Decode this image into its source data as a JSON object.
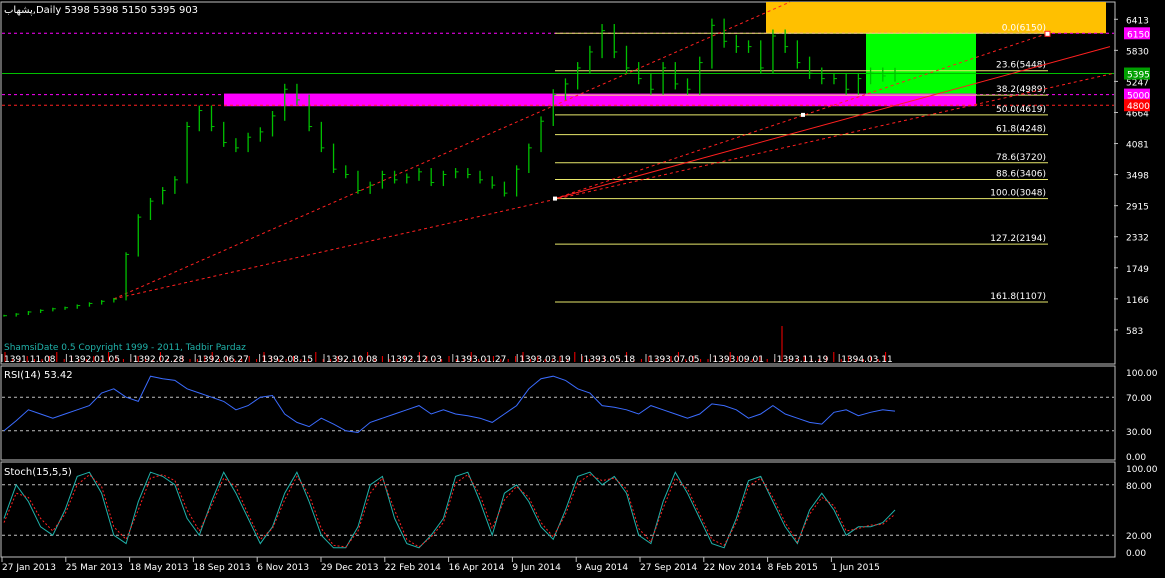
{
  "window": {
    "title": "پشهاب,Daily  5398 5398 5150 5395  903"
  },
  "colors": {
    "background": "#000000",
    "price": "#00c000",
    "fib_line": "#e8e86c",
    "trend": "#ff2020",
    "magenta": "#ff00ff",
    "zone_yellow": "#ffc000",
    "zone_green": "#00ff00",
    "rsi_line": "#3b6cff",
    "stoch_main": "#20b2aa",
    "stoch_signal": "#ff2020",
    "axis_text": "#ffffff",
    "frame": "#c0c0c0"
  },
  "chart_data": [
    {
      "type": "line",
      "panel": "price",
      "title": "پشهاب,Daily  5398 5398 5150 5395  903",
      "ylim": [
        300,
        6700
      ],
      "y_ticks": [
        6413,
        5830,
        5247,
        4664,
        4081,
        3498,
        2915,
        2332,
        1749,
        1166,
        583
      ],
      "price_tags": [
        {
          "label": "6150",
          "value": 6150,
          "color": "#ff00ff"
        },
        {
          "label": "5395",
          "value": 5395,
          "color": "#00a000"
        },
        {
          "label": "5000",
          "value": 5000,
          "color": "#ff00ff"
        },
        {
          "label": "4800",
          "value": 4800,
          "color": "#ff0000"
        }
      ],
      "fib_levels": [
        {
          "label": "0.0(6150)",
          "value": 6150
        },
        {
          "label": "23.6(5448)",
          "value": 5448
        },
        {
          "label": "38.2(4989)",
          "value": 4989
        },
        {
          "label": "50.0(4619)",
          "value": 4619
        },
        {
          "label": "61.8(4248)",
          "value": 4248
        },
        {
          "label": "78.6(3720)",
          "value": 3720
        },
        {
          "label": "88.6(3406)",
          "value": 3406
        },
        {
          "label": "100.0(3048)",
          "value": 3048
        },
        {
          "label": "127.2(2194)",
          "value": 2194
        },
        {
          "label": "161.8(1107)",
          "value": 1107
        }
      ],
      "watermark": "ShamsiDate 0.5 Copyright 1999 - 2011, Tadbir Pardaz",
      "shamsi_dates": [
        "1391.11.08",
        "1392.01.05",
        "1392.02.28",
        "1392.06.27",
        "1392.08.15",
        "1392.10.08",
        "1392.12.03",
        "1393.01.27",
        "1393.03.19",
        "1393.05.18",
        "1393.07.05",
        "1393.09.01",
        "1393.11.19",
        "1394.03.11"
      ],
      "series": [
        {
          "values": [
            850,
            880,
            920,
            950,
            980,
            1000,
            1040,
            1080,
            1120,
            1160,
            2000,
            2700,
            3000,
            3200,
            3400,
            4400,
            4700,
            4400,
            4100,
            4000,
            4200,
            4300,
            4600,
            5100,
            4900,
            4400,
            4000,
            3600,
            3500,
            3200,
            3300,
            3500,
            3400,
            3450,
            3550,
            3350,
            3500,
            3550,
            3500,
            3400,
            3300,
            3150,
            3600,
            4000,
            4500,
            5000,
            5200,
            5500,
            5800,
            6200,
            5800,
            5500,
            5300,
            5100,
            5500,
            5200,
            5100,
            5600,
            6300,
            6000,
            5900,
            5900,
            5500,
            6100,
            5900,
            5600,
            5400,
            5300,
            5300,
            5100,
            5300,
            5400,
            5350,
            5395
          ]
        }
      ]
    },
    {
      "type": "line",
      "panel": "rsi",
      "title": "RSI(14) 53.42",
      "ylim": [
        0,
        100
      ],
      "y_ticks": [
        100,
        70,
        30,
        0
      ],
      "levels": [
        70,
        30
      ],
      "series": [
        {
          "name": "RSI(14)",
          "values": [
            30,
            42,
            55,
            50,
            45,
            50,
            55,
            60,
            75,
            80,
            70,
            65,
            95,
            92,
            90,
            80,
            75,
            70,
            65,
            55,
            60,
            70,
            72,
            50,
            40,
            35,
            45,
            38,
            30,
            28,
            40,
            45,
            50,
            55,
            60,
            50,
            55,
            50,
            48,
            45,
            40,
            50,
            60,
            80,
            92,
            95,
            90,
            80,
            75,
            60,
            58,
            55,
            50,
            60,
            55,
            50,
            45,
            50,
            62,
            60,
            55,
            45,
            50,
            60,
            50,
            45,
            40,
            38,
            52,
            55,
            48,
            52,
            55,
            53.42
          ]
        }
      ]
    },
    {
      "type": "line",
      "panel": "stochastic",
      "title": "Stoch(15,5,5)",
      "ylim": [
        0,
        100
      ],
      "y_ticks": [
        100,
        80,
        20,
        0
      ],
      "levels": [
        80,
        20
      ],
      "x_labels": [
        "27 Jan 2013",
        "25 Mar 2013",
        "18 May 2013",
        "18 Sep 2013",
        "6 Nov 2013",
        "29 Dec 2013",
        "22 Feb 2014",
        "16 Apr 2014",
        "9 Jun 2014",
        "9 Aug 2014",
        "27 Sep 2014",
        "22 Nov 2014",
        "8 Feb 2015",
        "1 Jun 2015"
      ],
      "series": [
        {
          "name": "Main",
          "values": [
            40,
            80,
            60,
            30,
            20,
            50,
            90,
            95,
            70,
            20,
            10,
            60,
            95,
            90,
            80,
            40,
            20,
            60,
            95,
            70,
            40,
            10,
            30,
            70,
            95,
            60,
            20,
            5,
            5,
            30,
            80,
            90,
            40,
            10,
            5,
            20,
            40,
            90,
            95,
            60,
            20,
            70,
            80,
            60,
            30,
            15,
            50,
            90,
            95,
            80,
            90,
            70,
            20,
            10,
            60,
            95,
            70,
            40,
            10,
            5,
            40,
            85,
            90,
            60,
            30,
            10,
            50,
            70,
            50,
            20,
            30,
            30,
            35,
            50
          ]
        },
        {
          "name": "Signal",
          "values": [
            35,
            70,
            65,
            40,
            25,
            45,
            80,
            92,
            78,
            30,
            15,
            50,
            88,
            92,
            85,
            50,
            25,
            55,
            88,
            78,
            45,
            15,
            28,
            62,
            90,
            68,
            28,
            8,
            6,
            25,
            70,
            88,
            50,
            15,
            6,
            18,
            35,
            82,
            92,
            68,
            28,
            62,
            78,
            65,
            35,
            18,
            45,
            82,
            92,
            85,
            88,
            75,
            28,
            12,
            52,
            88,
            75,
            45,
            15,
            8,
            35,
            78,
            88,
            65,
            35,
            12,
            45,
            65,
            55,
            25,
            28,
            32,
            33,
            45
          ]
        }
      ]
    }
  ]
}
